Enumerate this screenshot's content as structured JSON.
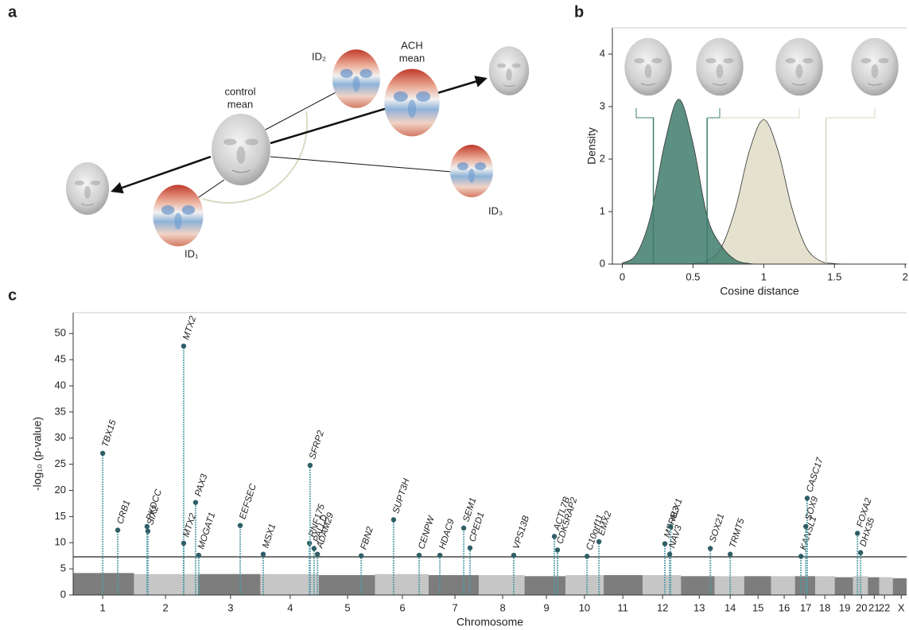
{
  "panel_labels": [
    "a",
    "b",
    "c"
  ],
  "diagram": {
    "control_mean": [
      "control",
      "mean"
    ],
    "ach_mean": [
      "ACH",
      "mean"
    ],
    "id_labels": [
      "ID₁",
      "ID₂",
      "ID₃"
    ]
  },
  "chart_data": [
    {
      "type": "density",
      "xlabel": "Cosine distance",
      "ylabel": "Density",
      "x": [
        0,
        0.1,
        0.2,
        0.3,
        0.4,
        0.5,
        0.6,
        0.7,
        0.8,
        0.9,
        1.0,
        1.1,
        1.2,
        1.3,
        1.4,
        1.5,
        1.6,
        1.7,
        1.8,
        1.9,
        2.0
      ],
      "series": [
        {
          "color": "#e4e1cf",
          "values": [
            0,
            0,
            0,
            0,
            0,
            0.01,
            0.06,
            0.32,
            1.06,
            2.17,
            2.75,
            2.17,
            1.06,
            0.32,
            0.06,
            0.01,
            0,
            0,
            0,
            0,
            0
          ]
        },
        {
          "color": "#3f7c6c",
          "values": [
            0.02,
            0.19,
            0.91,
            2.3,
            3.14,
            2.3,
            0.91,
            0.35,
            0.08,
            0.01,
            0,
            0,
            0,
            0,
            0,
            0,
            0,
            0,
            0,
            0,
            0
          ]
        }
      ],
      "vlines": [
        {
          "value": 0.22,
          "color": "#3f7c6c"
        },
        {
          "value": 0.6,
          "color": "#3f7c6c"
        },
        {
          "value": 1.44,
          "color": "#d9d6c0"
        }
      ],
      "xlim": [
        -0.07,
        2.01
      ],
      "xticks": [
        0,
        0.5,
        1,
        1.5,
        2
      ],
      "ylim": [
        0,
        4.5
      ],
      "yticks": [
        0,
        1,
        2,
        3,
        4
      ]
    },
    {
      "type": "manhattan",
      "xlabel": "Chromosome",
      "ylabel": "-log₁₀ (p-value)",
      "xlim": [
        0,
        2934
      ],
      "xticks": [
        {
          "value": 104,
          "label": "1"
        },
        {
          "value": 325,
          "label": "2"
        },
        {
          "value": 554,
          "label": "3"
        },
        {
          "value": 764,
          "label": "4"
        },
        {
          "value": 966,
          "label": "5"
        },
        {
          "value": 1159,
          "label": "6"
        },
        {
          "value": 1344,
          "label": "7"
        },
        {
          "value": 1512,
          "label": "8"
        },
        {
          "value": 1666,
          "label": "9"
        },
        {
          "value": 1800,
          "label": "10"
        },
        {
          "value": 1935,
          "label": "11"
        },
        {
          "value": 2075,
          "label": "12"
        },
        {
          "value": 2204,
          "label": "13"
        },
        {
          "value": 2313,
          "label": "14"
        },
        {
          "value": 2411,
          "label": "15"
        },
        {
          "value": 2503,
          "label": "16"
        },
        {
          "value": 2579,
          "label": "17"
        },
        {
          "value": 2646,
          "label": "18"
        },
        {
          "value": 2716,
          "label": "19"
        },
        {
          "value": 2775,
          "label": "20"
        },
        {
          "value": 2820,
          "label": "21"
        },
        {
          "value": 2856,
          "label": "22"
        },
        {
          "value": 2915,
          "label": "X"
        }
      ],
      "ylim": [
        0,
        54
      ],
      "yticks": [
        0,
        5,
        10,
        15,
        20,
        25,
        30,
        35,
        40,
        45,
        50
      ],
      "threshold": 7.3,
      "background": {
        "colors": [
          "#7d7d7d",
          "#c6c6c6"
        ],
        "values": [
          4.2,
          4,
          4,
          4,
          3.8,
          4,
          3.8,
          3.8,
          3.6,
          3.8,
          3.8,
          3.8,
          3.6,
          3.6,
          3.6,
          3.6,
          3.6,
          3.6,
          3.4,
          3.6,
          3.4,
          3.4,
          3.2
        ]
      },
      "peaks": {
        "color": "#4f9aa6",
        "dot_color": "#2f5f66",
        "labels": [
          "TBX15",
          "CRB1",
          "PKDCC",
          "SIX2",
          "MTX2",
          "MTX2",
          "PAX3",
          "MOGAT1",
          "EEFSEC",
          "MSX1",
          "RNF175",
          "SFRP2",
          "PALLD",
          "ADAM29",
          "FBN2",
          "SUPT3H",
          "CENPW",
          "HDAC9",
          "SEM1",
          "CPED1",
          "VPS13B",
          "ACTL7B",
          "CDK5RAP2",
          "C10orf11",
          "EMX2",
          "MSRB3",
          "ALX1",
          "NAV3",
          "SOX21",
          "TRMT5",
          "KANSL1",
          "CASC17",
          "SOX9",
          "FOXA2",
          "DHX35"
        ],
        "x": [
          104,
          157,
          260,
          263,
          389,
          389,
          431,
          442,
          588,
          669,
          832,
          834,
          848,
          860,
          1014,
          1128,
          1218,
          1291,
          1375,
          1397,
          1551,
          1694,
          1705,
          1809,
          1851,
          2083,
          2103,
          2100,
          2243,
          2313,
          2562,
          2584,
          2579,
          2761,
          2772
        ],
        "values": [
          27.1,
          12.4,
          13.1,
          12.2,
          47.6,
          9.9,
          17.7,
          7.6,
          13.3,
          7.8,
          9.9,
          24.8,
          8.9,
          7.8,
          7.5,
          14.4,
          7.6,
          7.6,
          12.8,
          9.0,
          7.6,
          11.2,
          8.6,
          7.4,
          10.2,
          9.8,
          13.1,
          7.8,
          8.9,
          7.8,
          7.4,
          18.5,
          13.1,
          11.8,
          8.1
        ]
      }
    }
  ]
}
